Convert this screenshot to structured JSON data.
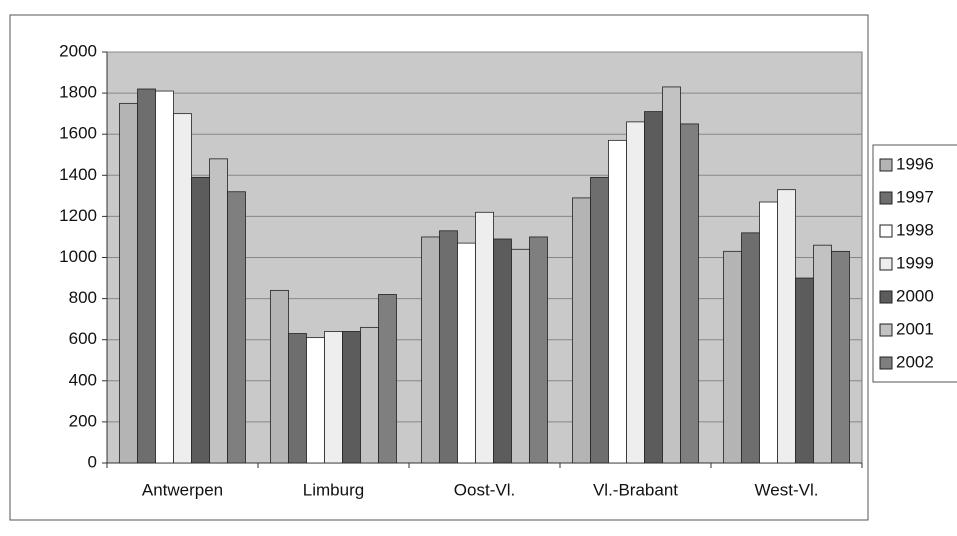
{
  "chart_data": {
    "type": "bar",
    "categories": [
      "Antwerpen",
      "Limburg",
      "Oost-Vl.",
      "Vl.-Brabant",
      "West-Vl."
    ],
    "series": [
      {
        "name": "1996",
        "color": "#b4b4b4",
        "values": [
          1750,
          840,
          1100,
          1290,
          1030
        ]
      },
      {
        "name": "1997",
        "color": "#6e6e6e",
        "values": [
          1820,
          630,
          1130,
          1390,
          1120
        ]
      },
      {
        "name": "1998",
        "color": "#ffffff",
        "values": [
          1810,
          610,
          1070,
          1570,
          1270
        ]
      },
      {
        "name": "1999",
        "color": "#eeeeee",
        "values": [
          1700,
          640,
          1220,
          1660,
          1330
        ]
      },
      {
        "name": "2000",
        "color": "#5c5c5c",
        "values": [
          1390,
          640,
          1090,
          1710,
          900
        ]
      },
      {
        "name": "2001",
        "color": "#c2c2c2",
        "values": [
          1480,
          660,
          1040,
          1830,
          1060
        ]
      },
      {
        "name": "2002",
        "color": "#7f7f7f",
        "values": [
          1320,
          820,
          1100,
          1650,
          1030
        ]
      }
    ],
    "ylim": [
      0,
      2000
    ],
    "yticks": [
      0,
      200,
      400,
      600,
      800,
      1000,
      1200,
      1400,
      1600,
      1800,
      2000
    ],
    "grid": true,
    "legend": "right"
  }
}
